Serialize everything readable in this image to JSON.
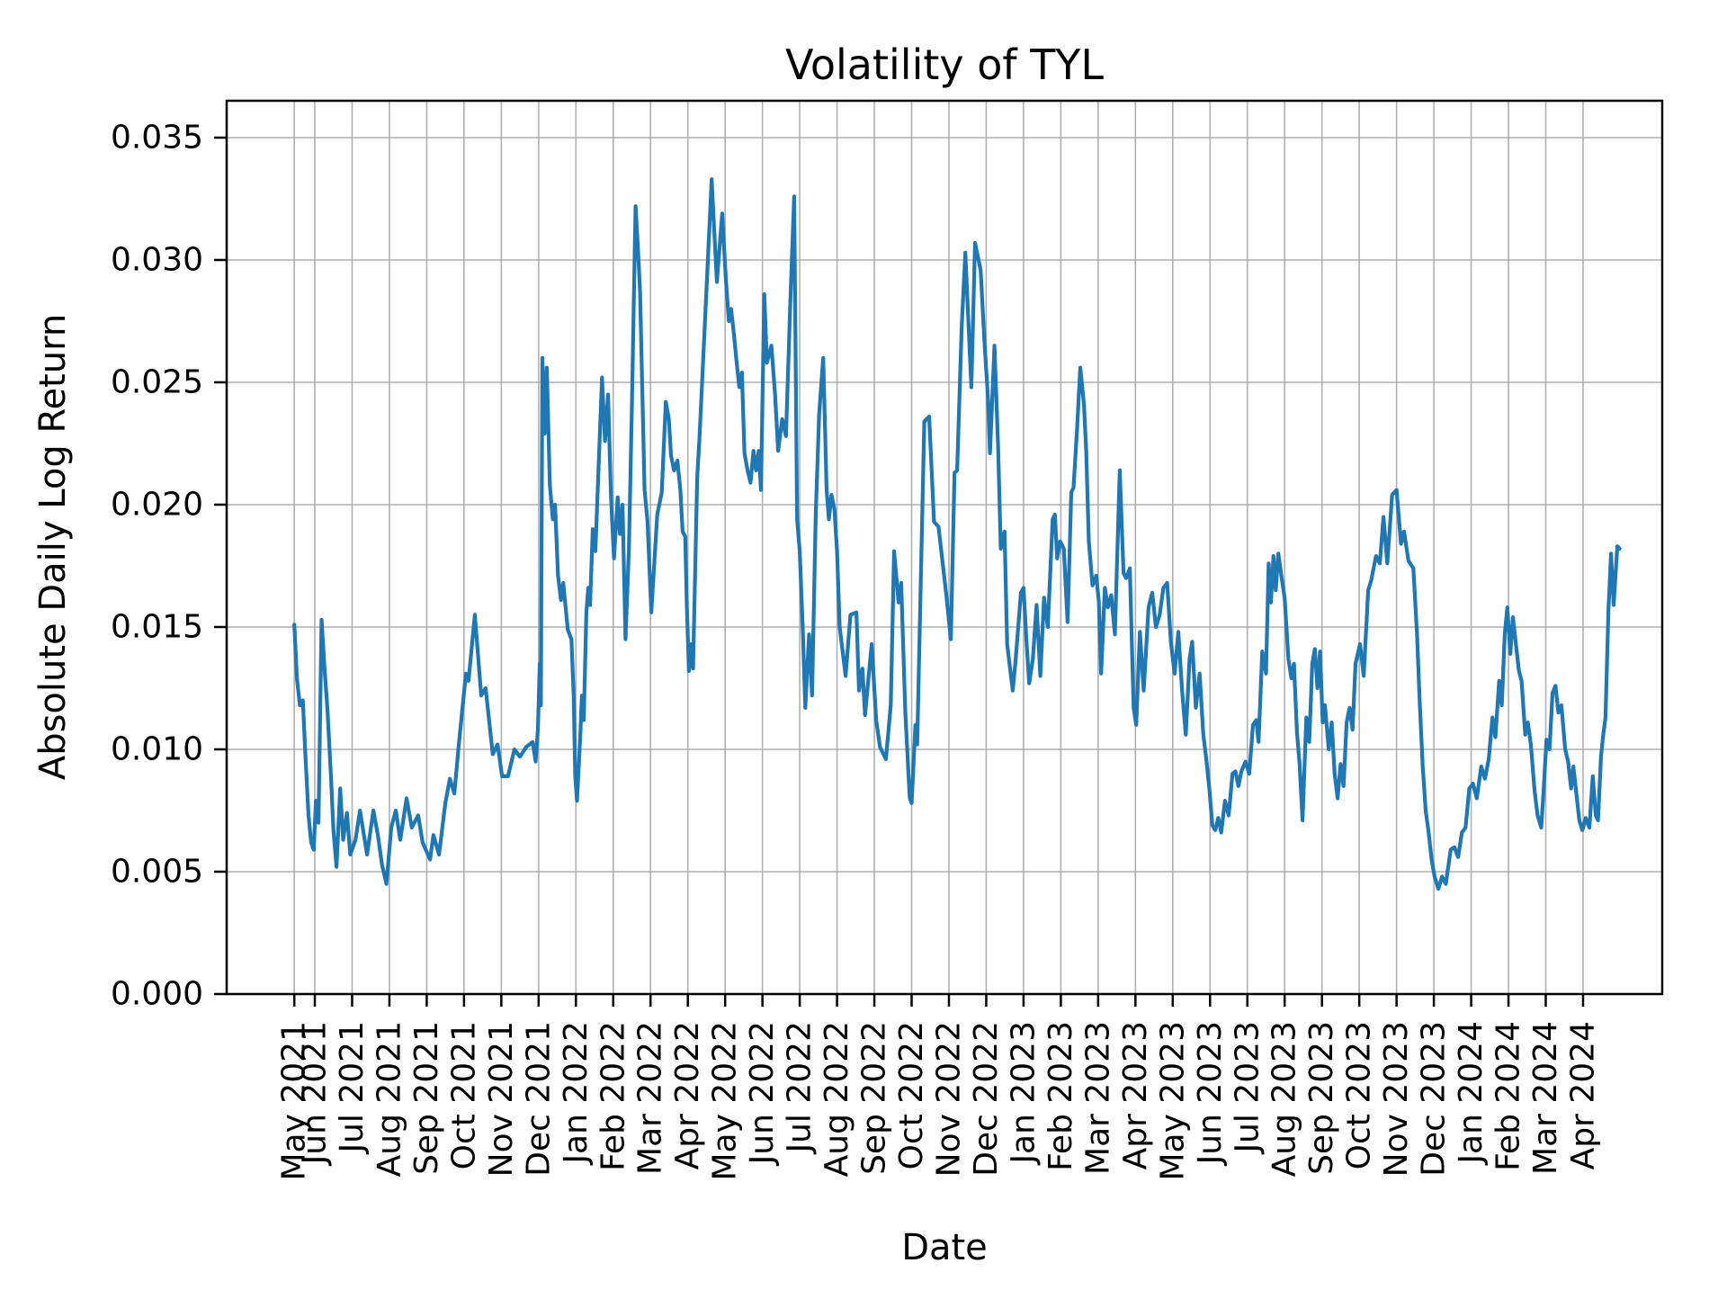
{
  "title": "Volatility of TYL",
  "axes": {
    "xlabel": "Date",
    "ylabel": "Absolute Daily Log Return"
  },
  "colors": {
    "line": "#1f77b4",
    "grid": "#b0b0b0",
    "spine": "#000000",
    "background": "#ffffff"
  },
  "chart_data": {
    "type": "line",
    "title": "Volatility of TYL",
    "xlabel": "Date",
    "ylabel": "Absolute Daily Log Return",
    "legend": "none",
    "grid": "on",
    "x_unit": "months offset, 0 = May 2021 tick (data begins mid-May 2021), 35 = Apr 2024",
    "x_tick_months": [
      0.45,
      1,
      2,
      3,
      4,
      5,
      6,
      7,
      8,
      9,
      10,
      11,
      12,
      13,
      14,
      15,
      16,
      17,
      18,
      19,
      20,
      21,
      22,
      23,
      24,
      25,
      26,
      27,
      28,
      29,
      30,
      31,
      32,
      33,
      34,
      35
    ],
    "x_tick_labels": [
      "May 2021",
      "Jun 2021",
      "Jul 2021",
      "Aug 2021",
      "Sep 2021",
      "Oct 2021",
      "Nov 2021",
      "Dec 2021",
      "Jan 2022",
      "Feb 2022",
      "Mar 2022",
      "Apr 2022",
      "May 2022",
      "Jun 2022",
      "Jul 2022",
      "Aug 2022",
      "Sep 2022",
      "Oct 2022",
      "Nov 2022",
      "Dec 2022",
      "Jan 2023",
      "Feb 2023",
      "Mar 2023",
      "Apr 2023",
      "May 2023",
      "Jun 2023",
      "Jul 2023",
      "Aug 2023",
      "Sep 2023",
      "Oct 2023",
      "Nov 2023",
      "Dec 2023",
      "Jan 2024",
      "Feb 2024",
      "Mar 2024",
      "Apr 2024"
    ],
    "y_ticks": [
      0.0,
      0.005,
      0.01,
      0.015,
      0.02,
      0.025,
      0.03,
      0.035
    ],
    "y_tick_labels": [
      "0.000",
      "0.005",
      "0.010",
      "0.015",
      "0.020",
      "0.025",
      "0.030",
      "0.035"
    ],
    "ylim": [
      0.0,
      0.0365
    ],
    "xlim_months": [
      -1.35,
      37.1
    ],
    "points": [
      [
        0.45,
        0.0151
      ],
      [
        0.52,
        0.0129
      ],
      [
        0.6,
        0.0118
      ],
      [
        0.68,
        0.012
      ],
      [
        0.75,
        0.0097
      ],
      [
        0.83,
        0.0073
      ],
      [
        0.9,
        0.0062
      ],
      [
        0.97,
        0.0059
      ],
      [
        1.03,
        0.0079
      ],
      [
        1.1,
        0.007
      ],
      [
        1.18,
        0.0153
      ],
      [
        1.26,
        0.0133
      ],
      [
        1.34,
        0.0116
      ],
      [
        1.43,
        0.009
      ],
      [
        1.5,
        0.0067
      ],
      [
        1.58,
        0.0052
      ],
      [
        1.68,
        0.0084
      ],
      [
        1.76,
        0.0063
      ],
      [
        1.86,
        0.0074
      ],
      [
        1.95,
        0.0057
      ],
      [
        2.09,
        0.0063
      ],
      [
        2.21,
        0.0075
      ],
      [
        2.4,
        0.0057
      ],
      [
        2.57,
        0.0075
      ],
      [
        2.69,
        0.0065
      ],
      [
        2.8,
        0.0053
      ],
      [
        2.92,
        0.0045
      ],
      [
        3.05,
        0.0068
      ],
      [
        3.17,
        0.0075
      ],
      [
        3.29,
        0.0063
      ],
      [
        3.46,
        0.008
      ],
      [
        3.6,
        0.0068
      ],
      [
        3.77,
        0.0073
      ],
      [
        3.89,
        0.0062
      ],
      [
        4.09,
        0.0055
      ],
      [
        4.18,
        0.0065
      ],
      [
        4.33,
        0.0057
      ],
      [
        4.5,
        0.0078
      ],
      [
        4.62,
        0.0088
      ],
      [
        4.74,
        0.0082
      ],
      [
        4.86,
        0.0102
      ],
      [
        5.05,
        0.0131
      ],
      [
        5.12,
        0.0128
      ],
      [
        5.29,
        0.0155
      ],
      [
        5.46,
        0.0122
      ],
      [
        5.58,
        0.0125
      ],
      [
        5.77,
        0.0098
      ],
      [
        5.9,
        0.0102
      ],
      [
        6.02,
        0.0089
      ],
      [
        6.18,
        0.0089
      ],
      [
        6.35,
        0.01
      ],
      [
        6.5,
        0.0097
      ],
      [
        6.67,
        0.0101
      ],
      [
        6.84,
        0.0103
      ],
      [
        6.92,
        0.0095
      ],
      [
        6.98,
        0.0108
      ],
      [
        7.03,
        0.0135
      ],
      [
        7.06,
        0.0118
      ],
      [
        7.1,
        0.026
      ],
      [
        7.16,
        0.0229
      ],
      [
        7.22,
        0.0256
      ],
      [
        7.3,
        0.0208
      ],
      [
        7.38,
        0.0194
      ],
      [
        7.44,
        0.02
      ],
      [
        7.52,
        0.0171
      ],
      [
        7.6,
        0.0161
      ],
      [
        7.66,
        0.0168
      ],
      [
        7.78,
        0.0149
      ],
      [
        7.88,
        0.0145
      ],
      [
        7.94,
        0.0122
      ],
      [
        7.98,
        0.0089
      ],
      [
        8.03,
        0.0079
      ],
      [
        8.12,
        0.0107
      ],
      [
        8.16,
        0.0122
      ],
      [
        8.21,
        0.0112
      ],
      [
        8.28,
        0.0156
      ],
      [
        8.33,
        0.0166
      ],
      [
        8.38,
        0.0159
      ],
      [
        8.45,
        0.019
      ],
      [
        8.52,
        0.0181
      ],
      [
        8.7,
        0.0252
      ],
      [
        8.78,
        0.0226
      ],
      [
        8.86,
        0.0245
      ],
      [
        8.94,
        0.0203
      ],
      [
        9.02,
        0.0178
      ],
      [
        9.12,
        0.0203
      ],
      [
        9.18,
        0.0188
      ],
      [
        9.25,
        0.02
      ],
      [
        9.33,
        0.0145
      ],
      [
        9.42,
        0.0182
      ],
      [
        9.5,
        0.024
      ],
      [
        9.6,
        0.0322
      ],
      [
        9.67,
        0.0303
      ],
      [
        9.72,
        0.0287
      ],
      [
        9.84,
        0.0206
      ],
      [
        9.92,
        0.0193
      ],
      [
        10.02,
        0.0156
      ],
      [
        10.18,
        0.0196
      ],
      [
        10.3,
        0.0205
      ],
      [
        10.41,
        0.0242
      ],
      [
        10.49,
        0.0235
      ],
      [
        10.55,
        0.022
      ],
      [
        10.63,
        0.0214
      ],
      [
        10.72,
        0.0218
      ],
      [
        10.8,
        0.0206
      ],
      [
        10.86,
        0.0189
      ],
      [
        10.93,
        0.0187
      ],
      [
        10.97,
        0.016
      ],
      [
        11.03,
        0.0132
      ],
      [
        11.09,
        0.0143
      ],
      [
        11.14,
        0.0133
      ],
      [
        11.25,
        0.0211
      ],
      [
        11.31,
        0.0227
      ],
      [
        11.45,
        0.0272
      ],
      [
        11.64,
        0.0333
      ],
      [
        11.72,
        0.0308
      ],
      [
        11.78,
        0.0291
      ],
      [
        11.92,
        0.0319
      ],
      [
        12.02,
        0.0292
      ],
      [
        12.1,
        0.0275
      ],
      [
        12.16,
        0.028
      ],
      [
        12.24,
        0.0269
      ],
      [
        12.31,
        0.0258
      ],
      [
        12.38,
        0.0248
      ],
      [
        12.45,
        0.0254
      ],
      [
        12.52,
        0.0221
      ],
      [
        12.6,
        0.0214
      ],
      [
        12.68,
        0.0209
      ],
      [
        12.76,
        0.0222
      ],
      [
        12.83,
        0.0214
      ],
      [
        12.9,
        0.0222
      ],
      [
        12.96,
        0.0206
      ],
      [
        13.05,
        0.0286
      ],
      [
        13.12,
        0.0258
      ],
      [
        13.24,
        0.0265
      ],
      [
        13.34,
        0.0245
      ],
      [
        13.42,
        0.0222
      ],
      [
        13.53,
        0.0235
      ],
      [
        13.63,
        0.0228
      ],
      [
        13.74,
        0.0279
      ],
      [
        13.85,
        0.0326
      ],
      [
        13.93,
        0.0194
      ],
      [
        14.0,
        0.0181
      ],
      [
        14.08,
        0.015
      ],
      [
        14.15,
        0.0117
      ],
      [
        14.25,
        0.0147
      ],
      [
        14.33,
        0.0122
      ],
      [
        14.43,
        0.0196
      ],
      [
        14.52,
        0.0237
      ],
      [
        14.63,
        0.026
      ],
      [
        14.72,
        0.0206
      ],
      [
        14.78,
        0.0194
      ],
      [
        14.85,
        0.0204
      ],
      [
        14.93,
        0.0198
      ],
      [
        15.0,
        0.0181
      ],
      [
        15.07,
        0.015
      ],
      [
        15.23,
        0.013
      ],
      [
        15.36,
        0.0155
      ],
      [
        15.52,
        0.0156
      ],
      [
        15.59,
        0.0124
      ],
      [
        15.68,
        0.0133
      ],
      [
        15.75,
        0.0114
      ],
      [
        15.93,
        0.0143
      ],
      [
        16.05,
        0.0112
      ],
      [
        16.15,
        0.0101
      ],
      [
        16.31,
        0.0096
      ],
      [
        16.44,
        0.0118
      ],
      [
        16.53,
        0.0181
      ],
      [
        16.65,
        0.016
      ],
      [
        16.72,
        0.0168
      ],
      [
        16.83,
        0.0115
      ],
      [
        16.95,
        0.008
      ],
      [
        17.0,
        0.0078
      ],
      [
        17.1,
        0.011
      ],
      [
        17.15,
        0.0102
      ],
      [
        17.34,
        0.0234
      ],
      [
        17.47,
        0.0236
      ],
      [
        17.6,
        0.0193
      ],
      [
        17.72,
        0.0191
      ],
      [
        17.93,
        0.0163
      ],
      [
        18.05,
        0.0145
      ],
      [
        18.15,
        0.0213
      ],
      [
        18.22,
        0.0214
      ],
      [
        18.34,
        0.0272
      ],
      [
        18.44,
        0.0303
      ],
      [
        18.6,
        0.0248
      ],
      [
        18.7,
        0.0307
      ],
      [
        18.85,
        0.0296
      ],
      [
        18.95,
        0.0267
      ],
      [
        19.05,
        0.0243
      ],
      [
        19.1,
        0.0221
      ],
      [
        19.22,
        0.0265
      ],
      [
        19.32,
        0.0223
      ],
      [
        19.39,
        0.0182
      ],
      [
        19.49,
        0.0189
      ],
      [
        19.56,
        0.0143
      ],
      [
        19.71,
        0.0124
      ],
      [
        19.78,
        0.0135
      ],
      [
        19.93,
        0.0164
      ],
      [
        20.0,
        0.0166
      ],
      [
        20.08,
        0.0144
      ],
      [
        20.15,
        0.0127
      ],
      [
        20.25,
        0.0137
      ],
      [
        20.35,
        0.0159
      ],
      [
        20.45,
        0.013
      ],
      [
        20.55,
        0.0162
      ],
      [
        20.65,
        0.015
      ],
      [
        20.78,
        0.0194
      ],
      [
        20.84,
        0.0196
      ],
      [
        20.9,
        0.0178
      ],
      [
        20.98,
        0.0185
      ],
      [
        21.08,
        0.0182
      ],
      [
        21.18,
        0.0152
      ],
      [
        21.28,
        0.0205
      ],
      [
        21.34,
        0.0207
      ],
      [
        21.44,
        0.0232
      ],
      [
        21.52,
        0.0256
      ],
      [
        21.62,
        0.0241
      ],
      [
        21.68,
        0.0222
      ],
      [
        21.75,
        0.0185
      ],
      [
        21.85,
        0.0167
      ],
      [
        21.95,
        0.0171
      ],
      [
        22.02,
        0.016
      ],
      [
        22.08,
        0.0131
      ],
      [
        22.18,
        0.0166
      ],
      [
        22.26,
        0.0158
      ],
      [
        22.35,
        0.0163
      ],
      [
        22.45,
        0.0147
      ],
      [
        22.58,
        0.0214
      ],
      [
        22.68,
        0.0172
      ],
      [
        22.75,
        0.017
      ],
      [
        22.85,
        0.0174
      ],
      [
        22.95,
        0.0117
      ],
      [
        23.02,
        0.011
      ],
      [
        23.12,
        0.0148
      ],
      [
        23.22,
        0.0124
      ],
      [
        23.35,
        0.0158
      ],
      [
        23.45,
        0.0164
      ],
      [
        23.55,
        0.015
      ],
      [
        23.65,
        0.0155
      ],
      [
        23.75,
        0.0166
      ],
      [
        23.85,
        0.0168
      ],
      [
        23.95,
        0.0144
      ],
      [
        24.05,
        0.0131
      ],
      [
        24.15,
        0.0148
      ],
      [
        24.25,
        0.0124
      ],
      [
        24.35,
        0.0106
      ],
      [
        24.45,
        0.0137
      ],
      [
        24.52,
        0.0144
      ],
      [
        24.62,
        0.0117
      ],
      [
        24.72,
        0.0131
      ],
      [
        24.82,
        0.0106
      ],
      [
        24.9,
        0.0096
      ],
      [
        24.98,
        0.0084
      ],
      [
        25.06,
        0.0069
      ],
      [
        25.14,
        0.0067
      ],
      [
        25.22,
        0.0072
      ],
      [
        25.3,
        0.0066
      ],
      [
        25.4,
        0.0079
      ],
      [
        25.5,
        0.0073
      ],
      [
        25.6,
        0.009
      ],
      [
        25.68,
        0.0091
      ],
      [
        25.76,
        0.0085
      ],
      [
        25.84,
        0.0091
      ],
      [
        25.95,
        0.0095
      ],
      [
        26.05,
        0.009
      ],
      [
        26.15,
        0.011
      ],
      [
        26.24,
        0.0112
      ],
      [
        26.3,
        0.0103
      ],
      [
        26.4,
        0.014
      ],
      [
        26.5,
        0.0131
      ],
      [
        26.57,
        0.0176
      ],
      [
        26.63,
        0.016
      ],
      [
        26.7,
        0.0179
      ],
      [
        26.76,
        0.0165
      ],
      [
        26.83,
        0.018
      ],
      [
        26.92,
        0.017
      ],
      [
        27.0,
        0.0162
      ],
      [
        27.1,
        0.0137
      ],
      [
        27.18,
        0.0129
      ],
      [
        27.25,
        0.0135
      ],
      [
        27.33,
        0.0107
      ],
      [
        27.4,
        0.0094
      ],
      [
        27.48,
        0.0071
      ],
      [
        27.58,
        0.0113
      ],
      [
        27.66,
        0.0103
      ],
      [
        27.74,
        0.0135
      ],
      [
        27.81,
        0.0141
      ],
      [
        27.88,
        0.0125
      ],
      [
        27.95,
        0.014
      ],
      [
        28.02,
        0.0111
      ],
      [
        28.08,
        0.0118
      ],
      [
        28.18,
        0.01
      ],
      [
        28.26,
        0.0111
      ],
      [
        28.34,
        0.009
      ],
      [
        28.42,
        0.008
      ],
      [
        28.5,
        0.0094
      ],
      [
        28.58,
        0.0085
      ],
      [
        28.66,
        0.0111
      ],
      [
        28.74,
        0.0117
      ],
      [
        28.82,
        0.0108
      ],
      [
        28.9,
        0.0135
      ],
      [
        29.02,
        0.0143
      ],
      [
        29.12,
        0.013
      ],
      [
        29.24,
        0.0165
      ],
      [
        29.32,
        0.0169
      ],
      [
        29.45,
        0.0179
      ],
      [
        29.55,
        0.0176
      ],
      [
        29.65,
        0.0195
      ],
      [
        29.75,
        0.0176
      ],
      [
        29.88,
        0.0204
      ],
      [
        30.0,
        0.0206
      ],
      [
        30.12,
        0.0184
      ],
      [
        30.2,
        0.0189
      ],
      [
        30.32,
        0.0177
      ],
      [
        30.45,
        0.0174
      ],
      [
        30.55,
        0.0147
      ],
      [
        30.62,
        0.012
      ],
      [
        30.7,
        0.0093
      ],
      [
        30.78,
        0.0075
      ],
      [
        30.86,
        0.0066
      ],
      [
        30.94,
        0.0055
      ],
      [
        31.02,
        0.0048
      ],
      [
        31.12,
        0.0043
      ],
      [
        31.22,
        0.0048
      ],
      [
        31.32,
        0.0045
      ],
      [
        31.45,
        0.0059
      ],
      [
        31.55,
        0.006
      ],
      [
        31.65,
        0.0056
      ],
      [
        31.75,
        0.0066
      ],
      [
        31.85,
        0.0068
      ],
      [
        31.95,
        0.0084
      ],
      [
        32.05,
        0.0086
      ],
      [
        32.15,
        0.008
      ],
      [
        32.27,
        0.0093
      ],
      [
        32.37,
        0.0088
      ],
      [
        32.47,
        0.0096
      ],
      [
        32.57,
        0.0113
      ],
      [
        32.65,
        0.0105
      ],
      [
        32.75,
        0.0128
      ],
      [
        32.82,
        0.0118
      ],
      [
        32.9,
        0.0147
      ],
      [
        32.97,
        0.0158
      ],
      [
        33.05,
        0.0139
      ],
      [
        33.12,
        0.0154
      ],
      [
        33.2,
        0.0143
      ],
      [
        33.28,
        0.0132
      ],
      [
        33.35,
        0.0128
      ],
      [
        33.45,
        0.0106
      ],
      [
        33.52,
        0.0111
      ],
      [
        33.6,
        0.0102
      ],
      [
        33.7,
        0.0083
      ],
      [
        33.78,
        0.0073
      ],
      [
        33.88,
        0.0068
      ],
      [
        33.95,
        0.0085
      ],
      [
        34.02,
        0.0104
      ],
      [
        34.1,
        0.01
      ],
      [
        34.18,
        0.0123
      ],
      [
        34.26,
        0.0126
      ],
      [
        34.34,
        0.0115
      ],
      [
        34.42,
        0.0118
      ],
      [
        34.52,
        0.01
      ],
      [
        34.6,
        0.0095
      ],
      [
        34.68,
        0.0084
      ],
      [
        34.74,
        0.0093
      ],
      [
        34.82,
        0.0082
      ],
      [
        34.9,
        0.0071
      ],
      [
        34.98,
        0.0067
      ],
      [
        35.07,
        0.0072
      ],
      [
        35.17,
        0.0068
      ],
      [
        35.26,
        0.0089
      ],
      [
        35.34,
        0.0073
      ],
      [
        35.4,
        0.0071
      ],
      [
        35.48,
        0.0097
      ],
      [
        35.54,
        0.0106
      ],
      [
        35.6,
        0.0113
      ],
      [
        35.68,
        0.0157
      ],
      [
        35.75,
        0.018
      ],
      [
        35.82,
        0.0159
      ],
      [
        35.92,
        0.0183
      ],
      [
        35.98,
        0.0182
      ]
    ]
  }
}
